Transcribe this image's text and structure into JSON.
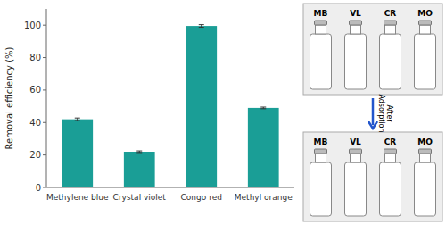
{
  "chart_data": {
    "type": "bar",
    "categories": [
      "Methylene blue",
      "Crystal violet",
      "Congo red",
      "Methyl orange"
    ],
    "values": [
      42.0,
      22.0,
      99.5,
      49.0
    ],
    "errors": [
      0.8,
      0.5,
      0.8,
      0.5
    ],
    "color": "#1a9e96",
    "ylabel": "Removal efficiency (%)",
    "ylim": [
      0,
      110
    ],
    "yticks": [
      0,
      20,
      40,
      60,
      80,
      100
    ],
    "grid": false,
    "annotations": [
      "MB",
      "VL",
      "CR",
      "MO",
      "MB",
      "VL",
      "CR",
      "MO",
      "After\nAdsorption"
    ]
  }
}
